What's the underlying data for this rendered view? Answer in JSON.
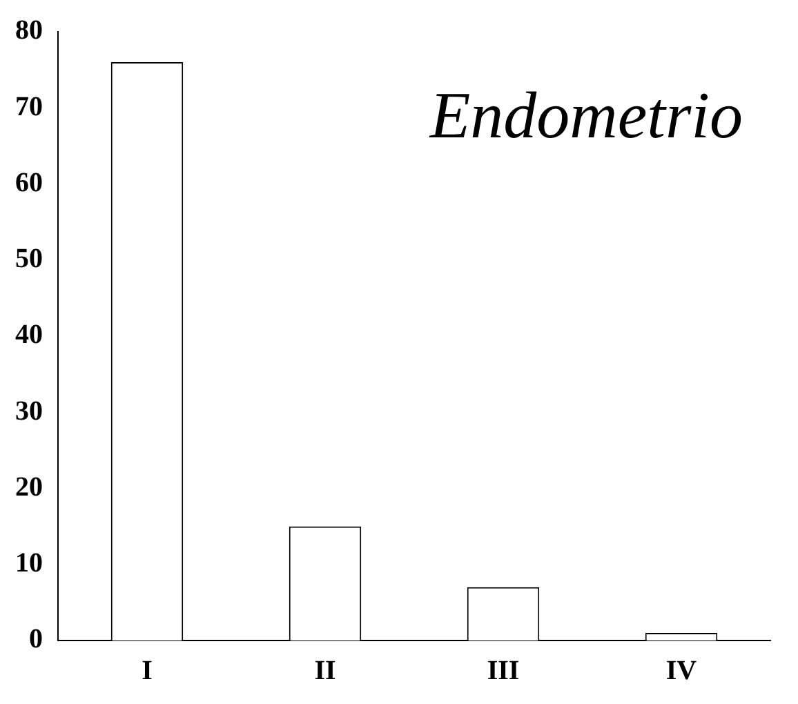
{
  "chart_data": {
    "type": "bar",
    "title": "Endometrio",
    "categories": [
      "I",
      "II",
      "III",
      "IV"
    ],
    "values": [
      76,
      15,
      7,
      1
    ],
    "color": "#ffffff",
    "ylim": [
      0,
      80
    ],
    "yticks": [
      0,
      10,
      20,
      30,
      40,
      50,
      60,
      70,
      80
    ],
    "grid": false,
    "legend": false
  }
}
